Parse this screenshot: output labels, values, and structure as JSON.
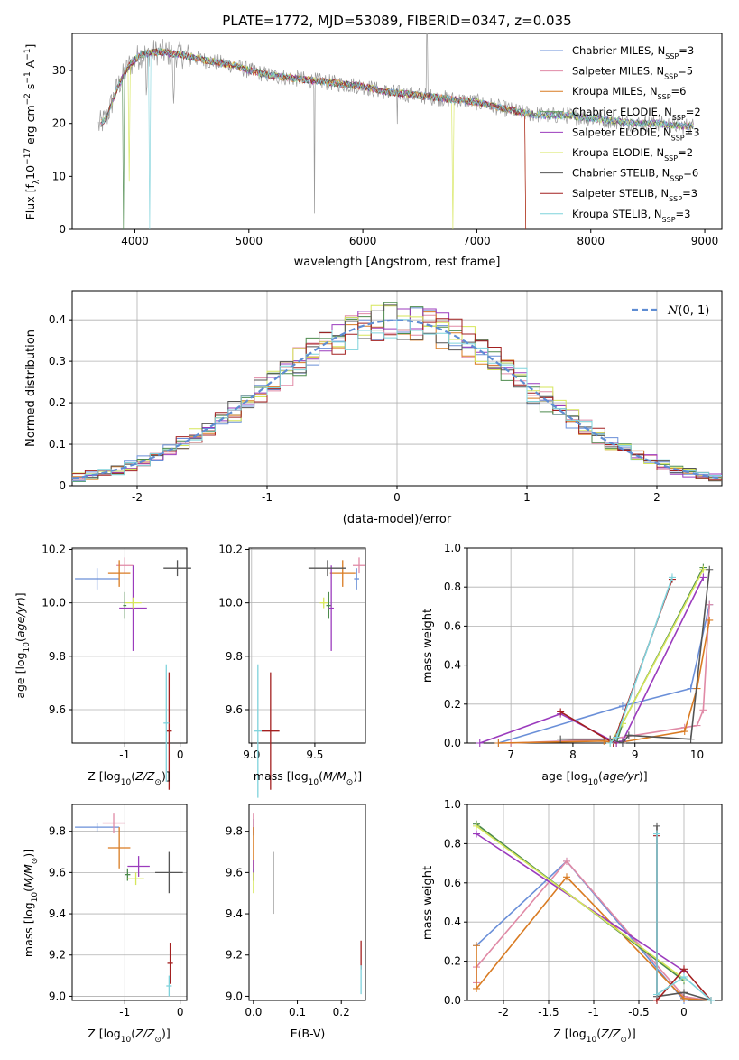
{
  "palette": {
    "cha_miles": "#6a8fd8",
    "sal_miles": "#e08aa6",
    "kro_miles": "#d97b22",
    "cha_elodie": "#4d8b4d",
    "sal_elodie": "#9b3bbd",
    "kro_elodie": "#d6e65a",
    "cha_stelib": "#555555",
    "sal_stelib": "#a32020",
    "kro_stelib": "#7fd3dc",
    "normal_curve": "#5f8dd3",
    "spectrum_gray": "#999999"
  },
  "chart_data": [
    {
      "id": "spectrum",
      "type": "line",
      "title": "PLATE=1772, MJD=53089, FIBERID=0347, z=0.035",
      "xlabel": "wavelength [Angstrom, rest frame]",
      "ylabel": "Flux [f_λ10^-17 erg cm^-2 s^-1 A^-1]",
      "xlim": [
        3450,
        9150
      ],
      "ylim": [
        0,
        37
      ],
      "xticks": [
        4000,
        5000,
        6000,
        7000,
        8000,
        9000
      ],
      "yticks": [
        0,
        10,
        20,
        30
      ],
      "legend_position": "top-right",
      "legend": [
        {
          "label": "Chabrier MILES, N_SSP=3",
          "color_key": "cha_miles"
        },
        {
          "label": "Salpeter MILES, N_SSP=5",
          "color_key": "sal_miles"
        },
        {
          "label": "Kroupa MILES, N_SSP=6",
          "color_key": "kro_miles"
        },
        {
          "label": "Chabrier ELODIE, N_SSP=2",
          "color_key": "cha_elodie"
        },
        {
          "label": "Salpeter ELODIE, N_SSP=3",
          "color_key": "sal_elodie"
        },
        {
          "label": "Kroupa ELODIE, N_SSP=2",
          "color_key": "kro_elodie"
        },
        {
          "label": "Chabrier STELIB, N_SSP=6",
          "color_key": "cha_stelib"
        },
        {
          "label": "Salpeter STELIB, N_SSP=3",
          "color_key": "sal_stelib"
        },
        {
          "label": "Kroupa STELIB, N_SSP=3",
          "color_key": "kro_stelib"
        }
      ],
      "continuum": [
        [
          3680,
          19.5
        ],
        [
          3750,
          21
        ],
        [
          3850,
          27
        ],
        [
          3950,
          31
        ],
        [
          4050,
          33
        ],
        [
          4200,
          33.5
        ],
        [
          4400,
          33
        ],
        [
          4600,
          32
        ],
        [
          4860,
          31
        ],
        [
          5000,
          30
        ],
        [
          5200,
          29
        ],
        [
          5400,
          28.5
        ],
        [
          5600,
          28
        ],
        [
          5800,
          27.5
        ],
        [
          6000,
          27
        ],
        [
          6200,
          26
        ],
        [
          6400,
          25.5
        ],
        [
          6600,
          25
        ],
        [
          6800,
          24.5
        ],
        [
          7000,
          24
        ],
        [
          7200,
          23
        ],
        [
          7400,
          22
        ],
        [
          7600,
          21.5
        ],
        [
          7800,
          21.5
        ],
        [
          8000,
          21
        ],
        [
          8200,
          20.5
        ],
        [
          8400,
          20
        ],
        [
          8600,
          20
        ],
        [
          8800,
          19.5
        ],
        [
          8900,
          19.5
        ]
      ],
      "model_cutoffs": [
        {
          "color_key": "kro_miles",
          "x_end": 7420
        },
        {
          "color_key": "sal_stelib",
          "x_end": 7420
        }
      ]
    },
    {
      "id": "residuals",
      "type": "histogram",
      "xlabel": "(data-model)/error",
      "ylabel": "Normed distribution",
      "xlim": [
        -2.5,
        2.5
      ],
      "ylim": [
        0,
        0.47
      ],
      "xticks": [
        -2,
        -1,
        0,
        1,
        2
      ],
      "yticks": [
        0.0,
        0.1,
        0.2,
        0.3,
        0.4
      ],
      "grid": true,
      "legend_position": "top-right",
      "legend": [
        {
          "label": "N(0,1)",
          "style": "dashed",
          "color_key": "normal_curve"
        }
      ],
      "bin_width": 0.1
    },
    {
      "id": "age_vs_z",
      "type": "errorbar",
      "xlabel": "Z [log10(Z/Z⊙)]",
      "ylabel": "age [log10(age/yr)]",
      "xlim": [
        -1.95,
        0.12
      ],
      "ylim": [
        9.475,
        10.205
      ],
      "xticks": [
        -1,
        0
      ],
      "yticks": [
        9.6,
        9.8,
        10.0,
        10.2
      ],
      "grid": true,
      "points": [
        {
          "color_key": "cha_miles",
          "x": -1.5,
          "xerr": 0.4,
          "y": 10.09,
          "yerr": 0.04
        },
        {
          "color_key": "sal_miles",
          "x": -1.0,
          "xerr": 0.15,
          "y": 10.14,
          "yerr": 0.03
        },
        {
          "color_key": "kro_miles",
          "x": -1.1,
          "xerr": 0.2,
          "y": 10.11,
          "yerr": 0.05
        },
        {
          "color_key": "cha_elodie",
          "x": -1.0,
          "xerr": 0.03,
          "y": 9.99,
          "yerr": 0.05
        },
        {
          "color_key": "sal_elodie",
          "x": -0.85,
          "xerr": 0.25,
          "y": 9.98,
          "yerr": 0.16
        },
        {
          "color_key": "kro_elodie",
          "x": -0.85,
          "xerr": 0.15,
          "y": 10.0,
          "yerr": 0.02
        },
        {
          "color_key": "cha_stelib",
          "x": -0.05,
          "xerr": 0.25,
          "y": 10.13,
          "yerr": 0.03
        },
        {
          "color_key": "sal_stelib",
          "x": -0.2,
          "xerr": 0.05,
          "y": 9.52,
          "yerr": 0.22
        },
        {
          "color_key": "kro_stelib",
          "x": -0.25,
          "xerr": 0.05,
          "y": 9.55,
          "yerr": 0.22
        }
      ]
    },
    {
      "id": "age_vs_mass",
      "type": "errorbar",
      "xlabel": "mass [log10(M/M⊙)]",
      "ylabel": "",
      "xlim": [
        8.98,
        9.9
      ],
      "ylim": [
        9.475,
        10.205
      ],
      "xticks": [
        9.0,
        9.5
      ],
      "yticks": [
        9.6,
        9.8,
        10.0,
        10.2
      ],
      "grid": true,
      "points": [
        {
          "color_key": "cha_miles",
          "x": 9.83,
          "xerr": 0.02,
          "y": 10.09,
          "yerr": 0.04
        },
        {
          "color_key": "sal_miles",
          "x": 9.85,
          "xerr": 0.05,
          "y": 10.14,
          "yerr": 0.03
        },
        {
          "color_key": "kro_miles",
          "x": 9.72,
          "xerr": 0.1,
          "y": 10.11,
          "yerr": 0.05
        },
        {
          "color_key": "cha_elodie",
          "x": 9.61,
          "xerr": 0.02,
          "y": 9.99,
          "yerr": 0.05
        },
        {
          "color_key": "sal_elodie",
          "x": 9.63,
          "xerr": 0.02,
          "y": 9.98,
          "yerr": 0.16
        },
        {
          "color_key": "kro_elodie",
          "x": 9.57,
          "xerr": 0.03,
          "y": 10.0,
          "yerr": 0.02
        },
        {
          "color_key": "cha_stelib",
          "x": 9.6,
          "xerr": 0.15,
          "y": 10.13,
          "yerr": 0.03
        },
        {
          "color_key": "sal_stelib",
          "x": 9.15,
          "xerr": 0.07,
          "y": 9.52,
          "yerr": 0.22
        },
        {
          "color_key": "kro_stelib",
          "x": 9.05,
          "xerr": 0.03,
          "y": 9.52,
          "yerr": 0.25
        }
      ]
    },
    {
      "id": "mass_weight_vs_age",
      "type": "line",
      "xlabel": "age [log10(age/yr)]",
      "ylabel": "mass weight",
      "xlim": [
        6.3,
        10.4
      ],
      "ylim": [
        0,
        1
      ],
      "xticks": [
        7,
        8,
        9,
        10
      ],
      "yticks": [
        0.0,
        0.2,
        0.4,
        0.6,
        0.8,
        1.0
      ],
      "grid": true,
      "series": [
        {
          "color_key": "cha_miles",
          "points": [
            [
              6.8,
              0.0
            ],
            [
              8.8,
              0.19
            ],
            [
              9.9,
              0.28
            ],
            [
              10.2,
              0.71
            ]
          ]
        },
        {
          "color_key": "sal_miles",
          "points": [
            [
              7.0,
              0.0
            ],
            [
              8.6,
              0.02
            ],
            [
              9.8,
              0.08
            ],
            [
              10.0,
              0.09
            ],
            [
              10.1,
              0.17
            ],
            [
              10.2,
              0.71
            ]
          ]
        },
        {
          "color_key": "kro_miles",
          "points": [
            [
              6.8,
              0.0
            ],
            [
              8.5,
              0.01
            ],
            [
              8.7,
              0.0
            ],
            [
              9.8,
              0.06
            ],
            [
              10.0,
              0.28
            ],
            [
              10.2,
              0.63
            ]
          ]
        },
        {
          "color_key": "cha_elodie",
          "points": [
            [
              8.7,
              0.0
            ],
            [
              8.8,
              0.1
            ],
            [
              10.1,
              0.9
            ]
          ]
        },
        {
          "color_key": "sal_elodie",
          "points": [
            [
              6.5,
              0.0
            ],
            [
              7.8,
              0.15
            ],
            [
              8.7,
              0.0
            ],
            [
              8.8,
              0.01
            ],
            [
              10.1,
              0.85
            ]
          ]
        },
        {
          "color_key": "kro_elodie",
          "points": [
            [
              8.6,
              0.0
            ],
            [
              8.8,
              0.1
            ],
            [
              10.1,
              0.89
            ]
          ]
        },
        {
          "color_key": "cha_stelib",
          "points": [
            [
              7.8,
              0.02
            ],
            [
              8.6,
              0.02
            ],
            [
              8.8,
              0.0
            ],
            [
              8.9,
              0.04
            ],
            [
              9.9,
              0.02
            ],
            [
              10.2,
              0.89
            ]
          ]
        },
        {
          "color_key": "sal_stelib",
          "points": [
            [
              7.8,
              0.16
            ],
            [
              8.65,
              0.0
            ],
            [
              9.6,
              0.84
            ]
          ]
        },
        {
          "color_key": "kro_stelib",
          "points": [
            [
              8.6,
              0.0
            ],
            [
              8.7,
              0.03
            ],
            [
              9.6,
              0.85
            ]
          ]
        }
      ]
    },
    {
      "id": "mass_vs_z",
      "type": "errorbar",
      "xlabel": "Z [log10(Z/Z⊙)]",
      "ylabel": "mass [log10(M/M⊙)]",
      "xlim": [
        -1.95,
        0.12
      ],
      "ylim": [
        8.98,
        9.93
      ],
      "xticks": [
        -1,
        0
      ],
      "yticks": [
        9.0,
        9.2,
        9.4,
        9.6,
        9.8
      ],
      "grid": true,
      "points": [
        {
          "color_key": "cha_miles",
          "x": -1.5,
          "xerr": 0.4,
          "y": 9.82,
          "yerr": 0.02
        },
        {
          "color_key": "sal_miles",
          "x": -1.2,
          "xerr": 0.2,
          "y": 9.84,
          "yerr": 0.05
        },
        {
          "color_key": "kro_miles",
          "x": -1.1,
          "xerr": 0.2,
          "y": 9.72,
          "yerr": 0.1
        },
        {
          "color_key": "cha_elodie",
          "x": -0.95,
          "xerr": 0.05,
          "y": 9.59,
          "yerr": 0.03
        },
        {
          "color_key": "sal_elodie",
          "x": -0.75,
          "xerr": 0.2,
          "y": 9.63,
          "yerr": 0.05
        },
        {
          "color_key": "kro_elodie",
          "x": -0.8,
          "xerr": 0.15,
          "y": 9.57,
          "yerr": 0.03
        },
        {
          "color_key": "cha_stelib",
          "x": -0.2,
          "xerr": 0.25,
          "y": 9.6,
          "yerr": 0.1
        },
        {
          "color_key": "sal_stelib",
          "x": -0.18,
          "xerr": 0.05,
          "y": 9.16,
          "yerr": 0.1
        },
        {
          "color_key": "kro_stelib",
          "x": -0.2,
          "xerr": 0.05,
          "y": 9.05,
          "yerr": 0.05
        }
      ]
    },
    {
      "id": "mass_vs_ebv",
      "type": "errorbar",
      "xlabel": "E(B-V)",
      "ylabel": "",
      "xlim": [
        -0.01,
        0.255
      ],
      "ylim": [
        8.98,
        9.93
      ],
      "xticks": [
        0.0,
        0.1,
        0.2
      ],
      "yticks": [
        9.0,
        9.2,
        9.4,
        9.6,
        9.8
      ],
      "grid": false,
      "points": [
        {
          "color_key": "cha_miles",
          "x": 0.0,
          "xerr": 0.0,
          "y": 9.82,
          "yerr": 0.04
        },
        {
          "color_key": "sal_miles",
          "x": 0.0,
          "xerr": 0.0,
          "y": 9.84,
          "yerr": 0.05
        },
        {
          "color_key": "kro_miles",
          "x": 0.0,
          "xerr": 0.0,
          "y": 9.72,
          "yerr": 0.1
        },
        {
          "color_key": "cha_elodie",
          "x": 0.0,
          "xerr": 0.0,
          "y": 9.59,
          "yerr": 0.03
        },
        {
          "color_key": "sal_elodie",
          "x": 0.0,
          "xerr": 0.0,
          "y": 9.61,
          "yerr": 0.05
        },
        {
          "color_key": "kro_elodie",
          "x": 0.0,
          "xerr": 0.0,
          "y": 9.55,
          "yerr": 0.05
        },
        {
          "color_key": "cha_stelib",
          "x": 0.045,
          "xerr": 0.0,
          "y": 9.55,
          "yerr": 0.15
        },
        {
          "color_key": "sal_stelib",
          "x": 0.245,
          "xerr": 0.0,
          "y": 9.2,
          "yerr": 0.07
        },
        {
          "color_key": "kro_stelib",
          "x": 0.245,
          "xerr": 0.0,
          "y": 9.08,
          "yerr": 0.07
        }
      ]
    },
    {
      "id": "mass_weight_vs_z",
      "type": "line",
      "xlabel": "Z [log10(Z/Z⊙)]",
      "ylabel": "mass weight",
      "xlim": [
        -2.4,
        0.42
      ],
      "ylim": [
        0,
        1
      ],
      "xticks": [
        -2.0,
        -1.5,
        -1.0,
        -0.5,
        0.0
      ],
      "yticks": [
        0.0,
        0.2,
        0.4,
        0.6,
        0.8,
        1.0
      ],
      "grid": true,
      "series": [
        {
          "color_key": "cha_miles",
          "points": [
            [
              -2.3,
              0.28
            ],
            [
              -1.3,
              0.71
            ],
            [
              0.0,
              0.0
            ]
          ]
        },
        {
          "color_key": "sal_miles",
          "points": [
            [
              -2.3,
              0.09
            ],
            [
              -2.3,
              0.17
            ],
            [
              -1.3,
              0.71
            ],
            [
              0.0,
              0.02
            ],
            [
              0.3,
              0.0
            ]
          ]
        },
        {
          "color_key": "kro_miles",
          "points": [
            [
              -2.3,
              0.28
            ],
            [
              -2.3,
              0.06
            ],
            [
              -1.3,
              0.63
            ],
            [
              0.0,
              0.01
            ],
            [
              0.3,
              0.0
            ]
          ]
        },
        {
          "color_key": "cha_elodie",
          "points": [
            [
              -2.3,
              0.9
            ],
            [
              0.0,
              0.1
            ]
          ]
        },
        {
          "color_key": "sal_elodie",
          "points": [
            [
              -2.3,
              0.85
            ],
            [
              0.0,
              0.15
            ]
          ]
        },
        {
          "color_key": "kro_elodie",
          "points": [
            [
              -2.3,
              0.89
            ],
            [
              0.0,
              0.11
            ]
          ]
        },
        {
          "color_key": "cha_stelib",
          "points": [
            [
              -0.3,
              0.89
            ],
            [
              -0.3,
              0.02
            ],
            [
              0.0,
              0.04
            ],
            [
              0.3,
              0.0
            ]
          ]
        },
        {
          "color_key": "sal_stelib",
          "points": [
            [
              -0.3,
              0.84
            ],
            [
              -0.3,
              0.0
            ],
            [
              0.0,
              0.16
            ],
            [
              0.3,
              0.0
            ]
          ]
        },
        {
          "color_key": "kro_stelib",
          "points": [
            [
              -0.3,
              0.85
            ],
            [
              -0.3,
              0.03
            ],
            [
              0.0,
              0.12
            ],
            [
              0.3,
              0.0
            ]
          ]
        }
      ]
    }
  ]
}
